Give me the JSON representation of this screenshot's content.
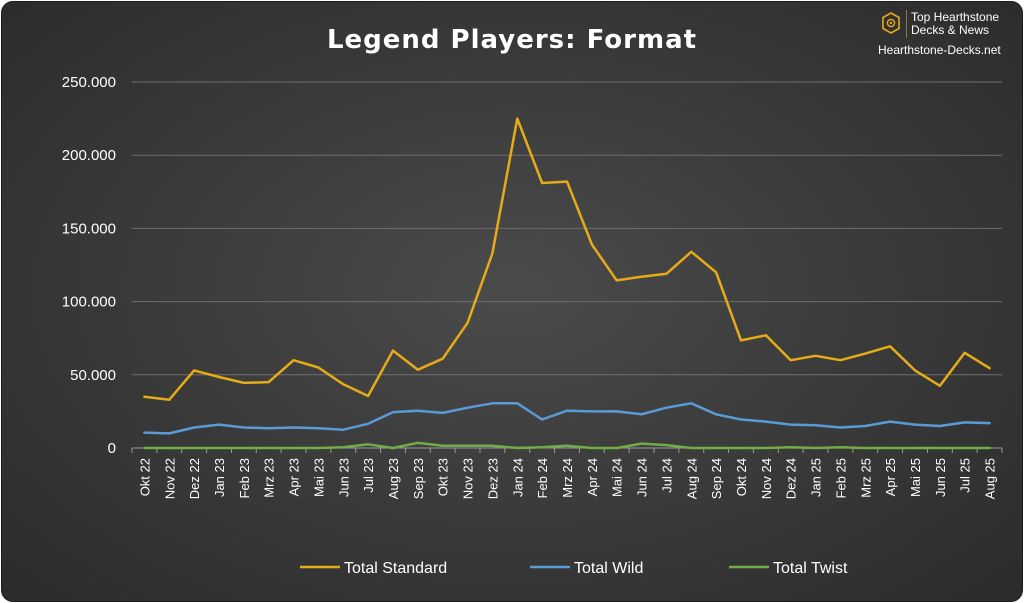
{
  "chart_data": {
    "type": "line",
    "title": "Legend Players: Format",
    "xlabel": "",
    "ylabel": "",
    "ylim": [
      0,
      250000
    ],
    "yticks": [
      0,
      50000,
      100000,
      150000,
      200000,
      250000
    ],
    "ytick_labels": [
      "0",
      "50.000",
      "100.000",
      "150.000",
      "200.000",
      "250.000"
    ],
    "grid": true,
    "legend": "bottom",
    "categories": [
      "Okt 22",
      "Nov 22",
      "Dez 22",
      "Jan 23",
      "Feb 23",
      "Mrz 23",
      "Apr 23",
      "Mai 23",
      "Jun 23",
      "Jul 23",
      "Aug 23",
      "Sep 23",
      "Okt 23",
      "Nov 23",
      "Dez 23",
      "Jan 24",
      "Feb 24",
      "Mrz 24",
      "Apr 24",
      "Mai 24",
      "Jun 24",
      "Jul 24",
      "Aug 24",
      "Sep 24",
      "Okt 24",
      "Nov 24",
      "Dez 24",
      "Jan 25",
      "Feb 25",
      "Mrz 25",
      "Apr 25",
      "Mai 25",
      "Jun 25",
      "Jul 25",
      "Aug 25"
    ],
    "series": [
      {
        "name": "Total Standard",
        "color": "#e6ac17",
        "values": [
          35000,
          33000,
          53000,
          48500,
          44500,
          45000,
          60000,
          55000,
          43500,
          35500,
          66500,
          53500,
          61000,
          85500,
          133000,
          225000,
          181000,
          182000,
          139000,
          114500,
          117000,
          119000,
          134000,
          120000,
          73500,
          77000,
          60000,
          63000,
          60000,
          64500,
          69500,
          53000,
          42500,
          65000,
          54500
        ]
      },
      {
        "name": "Total Wild",
        "color": "#5b9bd5",
        "values": [
          10500,
          10000,
          14000,
          16000,
          14000,
          13500,
          14000,
          13500,
          12500,
          16500,
          24500,
          25500,
          24000,
          27500,
          30500,
          30500,
          19500,
          25500,
          25000,
          25000,
          23000,
          27500,
          30500,
          23000,
          19500,
          18000,
          16000,
          15500,
          14000,
          15000,
          18000,
          16000,
          15000,
          17500,
          17000
        ]
      },
      {
        "name": "Total Twist",
        "color": "#70ad47",
        "values": [
          0,
          0,
          0,
          0,
          0,
          0,
          0,
          0,
          500,
          2500,
          0,
          3500,
          1500,
          1500,
          1500,
          0,
          500,
          1500,
          0,
          0,
          3000,
          2000,
          0,
          0,
          0,
          0,
          500,
          0,
          500,
          0,
          0,
          0,
          0,
          0,
          0
        ]
      }
    ]
  },
  "brand": {
    "line1": "Top Hearthstone",
    "line2": "Decks & News",
    "url": "Hearthstone-Decks.net",
    "accent_color": "#e6ac17",
    "logo_icon": "hexagon-swirl-icon"
  }
}
